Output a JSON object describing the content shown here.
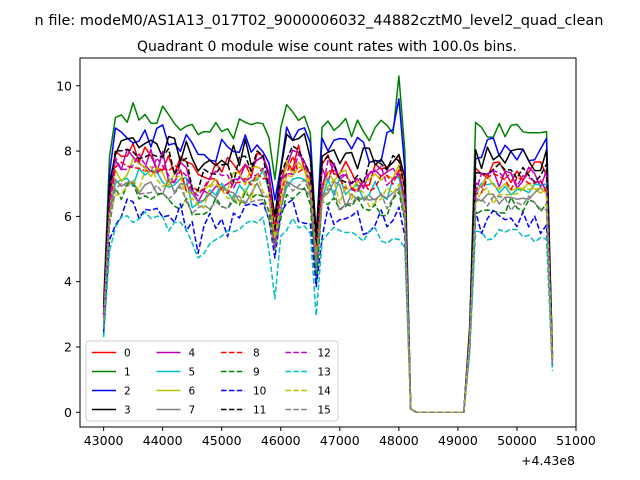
{
  "figure": {
    "suptitle": "n file: modeM0/AS1A13_017T02_9000006032_44882cztM0_level2_quad_clean",
    "title": "Quadrant 0 module wise count rates with 100.0s bins.",
    "offset_label": "+4.43e8"
  },
  "chart_data": {
    "type": "line",
    "x_offset": 443000000,
    "xlim": [
      42600,
      51000
    ],
    "ylim": [
      -0.45,
      10.85
    ],
    "x_ticks": [
      43000,
      44000,
      45000,
      46000,
      47000,
      48000,
      49000,
      50000,
      51000
    ],
    "x_tick_labels": [
      "43000",
      "44000",
      "45000",
      "46000",
      "47000",
      "48000",
      "49000",
      "50000",
      "51000"
    ],
    "y_ticks": [
      0,
      2,
      4,
      6,
      8,
      10
    ],
    "y_tick_labels": [
      "0",
      "2",
      "4",
      "6",
      "8",
      "10"
    ],
    "grid": false,
    "legend_location": "lower-left",
    "legend_columns": 4,
    "bin_seconds": 100,
    "gaps": [
      {
        "start": 48100,
        "end": 49200
      },
      {
        "start": 50600,
        "end": 51000
      }
    ],
    "series": [
      {
        "name": "0",
        "color": "#ff0000",
        "style": "solid",
        "level": 7.6,
        "start": 3.1,
        "dip1": 5.4,
        "dip2": 4.6,
        "variation": 0.45
      },
      {
        "name": "1",
        "color": "#008000",
        "style": "solid",
        "level": 8.9,
        "start": 3.3,
        "dip1": 6.6,
        "dip2": 5.5,
        "variation": 0.35,
        "peak": 10.3
      },
      {
        "name": "2",
        "color": "#0000ff",
        "style": "solid",
        "level": 8.3,
        "start": 3.0,
        "dip1": 6.2,
        "dip2": 5.7,
        "variation": 0.45,
        "peak": 9.6
      },
      {
        "name": "3",
        "color": "#000000",
        "style": "solid",
        "level": 8.0,
        "start": 3.2,
        "dip1": 6.0,
        "dip2": 5.1,
        "variation": 0.45
      },
      {
        "name": "4",
        "color": "#bf00bf",
        "style": "solid",
        "level": 7.4,
        "start": 3.0,
        "dip1": 5.3,
        "dip2": 4.9,
        "variation": 0.45
      },
      {
        "name": "5",
        "color": "#00bfbf",
        "style": "solid",
        "level": 7.0,
        "start": 2.6,
        "dip1": 4.9,
        "dip2": 4.3,
        "variation": 0.35
      },
      {
        "name": "6",
        "color": "#bfbf00",
        "style": "solid",
        "level": 7.2,
        "start": 2.8,
        "dip1": 5.0,
        "dip2": 4.6,
        "variation": 0.4
      },
      {
        "name": "7",
        "color": "#808080",
        "style": "solid",
        "level": 6.8,
        "start": 2.5,
        "dip1": 4.8,
        "dip2": 4.2,
        "variation": 0.35
      },
      {
        "name": "8",
        "color": "#ff0000",
        "style": "dashed",
        "level": 7.2,
        "start": 2.9,
        "dip1": 5.2,
        "dip2": 4.5,
        "variation": 0.4
      },
      {
        "name": "9",
        "color": "#008000",
        "style": "dashed",
        "level": 6.5,
        "start": 2.6,
        "dip1": 4.8,
        "dip2": 4.1,
        "variation": 0.35
      },
      {
        "name": "10",
        "color": "#0000ff",
        "style": "dashed",
        "level": 6.0,
        "start": 2.4,
        "dip1": 4.5,
        "dip2": 3.8,
        "variation": 0.45
      },
      {
        "name": "11",
        "color": "#000000",
        "style": "dashed",
        "level": 7.6,
        "start": 3.0,
        "dip1": 5.5,
        "dip2": 4.8,
        "variation": 0.4
      },
      {
        "name": "12",
        "color": "#bf00bf",
        "style": "dashed",
        "level": 7.3,
        "start": 2.9,
        "dip1": 5.1,
        "dip2": 4.6,
        "variation": 0.45
      },
      {
        "name": "13",
        "color": "#00bfbf",
        "style": "dashed",
        "level": 5.6,
        "start": 2.3,
        "dip1": 3.3,
        "dip2": 3.0,
        "variation": 0.3
      },
      {
        "name": "14",
        "color": "#bfbf00",
        "style": "dashed",
        "level": 6.9,
        "start": 2.8,
        "dip1": 4.9,
        "dip2": 4.4,
        "variation": 0.4
      },
      {
        "name": "15",
        "color": "#808080",
        "style": "dashed",
        "level": 6.6,
        "start": 2.6,
        "dip1": 4.7,
        "dip2": 4.3,
        "variation": 0.35
      }
    ]
  }
}
